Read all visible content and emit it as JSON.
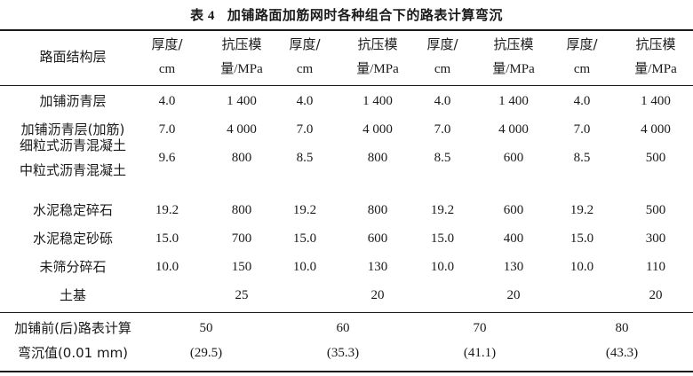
{
  "title": {
    "number": "表 4",
    "text": "加铺路面加筋网时各种组合下的路表计算弯沉"
  },
  "header": {
    "layer_label": "路面结构层",
    "columns": [
      {
        "line1": "厚度/",
        "line2": "cm"
      },
      {
        "line1": "抗压模",
        "line2": "量/MPa"
      },
      {
        "line1": "厚度/",
        "line2": "cm"
      },
      {
        "line1": "抗压模",
        "line2": "量/MPa"
      },
      {
        "line1": "厚度/",
        "line2": "cm"
      },
      {
        "line1": "抗压模",
        "line2": "量/MPa"
      },
      {
        "line1": "厚度/",
        "line2": "cm"
      },
      {
        "line1": "抗压模",
        "line2": "量/MPa"
      }
    ]
  },
  "rows": [
    {
      "label": "加铺沥青层",
      "values": [
        "4.0",
        "1 400",
        "4.0",
        "1 400",
        "4.0",
        "1 400",
        "4.0",
        "1 400"
      ]
    },
    {
      "label": "加铺沥青层(加筋)",
      "values": [
        "7.0",
        "4 000",
        "7.0",
        "4 000",
        "7.0",
        "4 000",
        "7.0",
        "4 000"
      ]
    },
    {
      "label": "细粒式沥青混凝土",
      "label2": "中粒式沥青混凝土",
      "values": [
        "9.6",
        "800",
        "8.5",
        "800",
        "8.5",
        "600",
        "8.5",
        "500"
      ]
    },
    {
      "label": "水泥稳定碎石",
      "values": [
        "19.2",
        "800",
        "19.2",
        "800",
        "19.2",
        "600",
        "19.2",
        "500"
      ]
    },
    {
      "label": "水泥稳定砂砾",
      "values": [
        "15.0",
        "700",
        "15.0",
        "600",
        "15.0",
        "400",
        "15.0",
        "300"
      ]
    },
    {
      "label": "未筛分碎石",
      "values": [
        "10.0",
        "150",
        "10.0",
        "130",
        "10.0",
        "130",
        "10.0",
        "110"
      ]
    },
    {
      "label": "土基",
      "values": [
        "",
        "25",
        "",
        "20",
        "",
        "20",
        "",
        "20"
      ]
    }
  ],
  "footer": {
    "label1": "加铺前(后)路表计算",
    "label2": "弯沉值(0.01 mm)",
    "before": [
      "50",
      "60",
      "70",
      "80"
    ],
    "after": [
      "(29.5)",
      "(35.3)",
      "(41.1)",
      "(43.3)"
    ]
  }
}
